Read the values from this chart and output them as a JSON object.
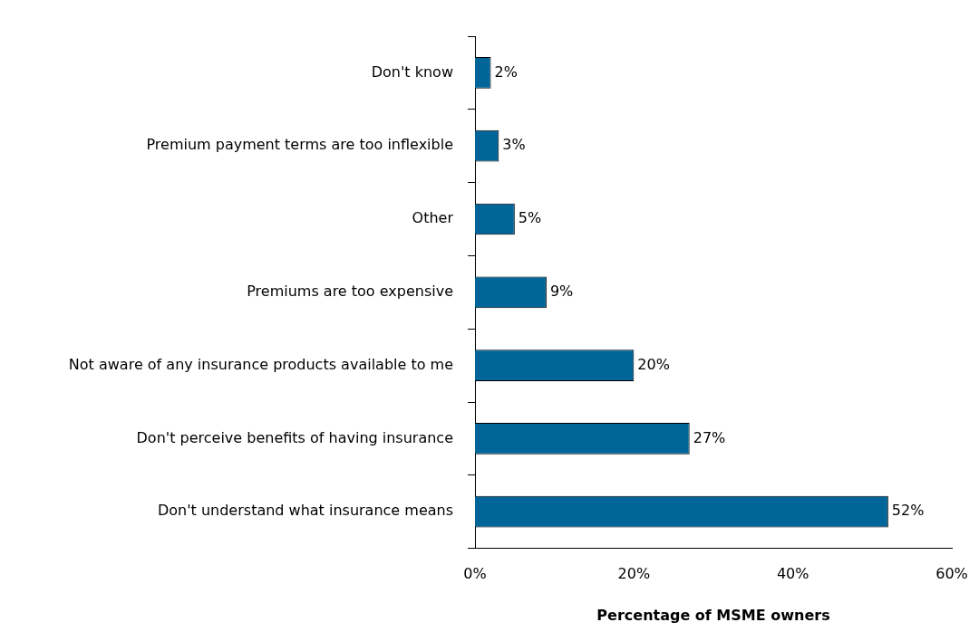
{
  "chart_data": {
    "type": "bar",
    "orientation": "horizontal",
    "xlabel": "Percentage of MSME owners",
    "categories": [
      "Don't know",
      "Premium payment terms are too inflexible",
      "Other",
      "Premiums are too expensive",
      "Not aware of any insurance products available to me",
      "Don't perceive benefits of having insurance",
      "Don't understand what insurance means"
    ],
    "values": [
      2,
      3,
      5,
      9,
      20,
      27,
      52
    ],
    "color": "#006699",
    "value_labels": [
      "2%",
      "3%",
      "5%",
      "9%",
      "20%",
      "27%",
      "52%"
    ],
    "xlim": [
      0,
      60
    ],
    "xticks": [
      {
        "value": 0,
        "label": "0%"
      },
      {
        "value": 20,
        "label": "20%"
      },
      {
        "value": 40,
        "label": "40%"
      },
      {
        "value": 60,
        "label": "60%"
      }
    ],
    "grid": false,
    "legend": false
  }
}
